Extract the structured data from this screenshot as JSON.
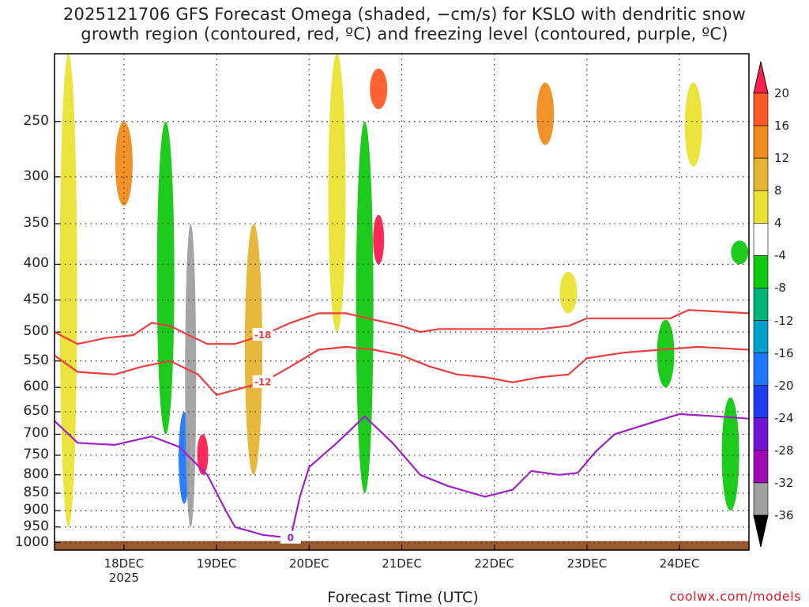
{
  "title": {
    "line1": "2025121706 GFS Forecast Omega (shaded, −cm/s) for KSLO with dendritic snow",
    "line2": "growth region (contoured, red, ºC) and freezing level (contoured, purple, ºC)"
  },
  "credit": "coolwx.com/models",
  "colors": {
    "dgz_contour": "#ee3d3d",
    "freezing_contour": "#a020c8",
    "terrain": "#9b5a2e",
    "grid": "#333333"
  },
  "chart_data": {
    "type": "heatmap",
    "xlabel": "Forecast Time (UTC)",
    "ylabel": "",
    "x_ticks": [
      {
        "label": "18DEC",
        "sub": "2025"
      },
      {
        "label": "19DEC",
        "sub": ""
      },
      {
        "label": "20DEC",
        "sub": ""
      },
      {
        "label": "21DEC",
        "sub": ""
      },
      {
        "label": "22DEC",
        "sub": ""
      },
      {
        "label": "23DEC",
        "sub": ""
      },
      {
        "label": "24DEC",
        "sub": ""
      }
    ],
    "x_range_days": [
      17.25,
      24.75
    ],
    "y_scale": "log-pressure",
    "y_ticks": [
      250,
      300,
      350,
      400,
      450,
      500,
      550,
      600,
      650,
      700,
      750,
      800,
      850,
      900,
      950,
      1000
    ],
    "y_range_hpa": [
      200,
      1025
    ],
    "colorbar": {
      "label_values": [
        20,
        16,
        12,
        8,
        4,
        -4,
        -8,
        -12,
        -16,
        -20,
        -24,
        -28,
        -32,
        -36
      ],
      "colors": [
        "#ff1e50",
        "#ff5a28",
        "#f08c1e",
        "#e6b432",
        "#ebe132",
        "#ffffff",
        "#10c810",
        "#00b478",
        "#00a0c8",
        "#1e78ff",
        "#1e3cf0",
        "#6e14d2",
        "#a00ab4",
        "#a0a0a0",
        "#000000"
      ],
      "labels": [
        "20",
        "16",
        "12",
        "8",
        "4",
        "-4",
        "-8",
        "-12",
        "-16",
        "-20",
        "-24",
        "-28",
        "-32",
        "-36"
      ]
    },
    "omega_features": [
      {
        "day": 17.4,
        "p_top": 200,
        "p_bot": 950,
        "value": 4
      },
      {
        "day": 18.0,
        "p_top": 250,
        "p_bot": 330,
        "value": 12
      },
      {
        "day": 18.45,
        "p_top": 250,
        "p_bot": 700,
        "value": -8
      },
      {
        "day": 18.65,
        "p_top": 650,
        "p_bot": 880,
        "value": -20
      },
      {
        "day": 18.72,
        "p_top": 350,
        "p_bot": 950,
        "value": -36
      },
      {
        "day": 18.85,
        "p_top": 700,
        "p_bot": 800,
        "value": 20
      },
      {
        "day": 19.4,
        "p_top": 350,
        "p_bot": 800,
        "value": 8
      },
      {
        "day": 20.3,
        "p_top": 200,
        "p_bot": 500,
        "value": 4
      },
      {
        "day": 20.6,
        "p_top": 250,
        "p_bot": 850,
        "value": -8
      },
      {
        "day": 20.75,
        "p_top": 340,
        "p_bot": 400,
        "value": 20
      },
      {
        "day": 20.75,
        "p_top": 210,
        "p_bot": 240,
        "value": 16
      },
      {
        "day": 22.55,
        "p_top": 220,
        "p_bot": 270,
        "value": 12
      },
      {
        "day": 22.8,
        "p_top": 410,
        "p_bot": 470,
        "value": 4
      },
      {
        "day": 23.85,
        "p_top": 480,
        "p_bot": 600,
        "value": -8
      },
      {
        "day": 24.15,
        "p_top": 220,
        "p_bot": 290,
        "value": 4
      },
      {
        "day": 24.55,
        "p_top": 620,
        "p_bot": 900,
        "value": -8
      },
      {
        "day": 24.65,
        "p_top": 370,
        "p_bot": 400,
        "value": -8
      }
    ],
    "contours": [
      {
        "name": "-18",
        "label": "-18",
        "color": "#ee3d3d",
        "points": [
          [
            17.25,
            500
          ],
          [
            17.5,
            520
          ],
          [
            17.8,
            510
          ],
          [
            18.1,
            505
          ],
          [
            18.3,
            485
          ],
          [
            18.5,
            490
          ],
          [
            18.7,
            505
          ],
          [
            18.9,
            520
          ],
          [
            19.2,
            520
          ],
          [
            19.5,
            505
          ],
          [
            19.8,
            485
          ],
          [
            20.1,
            470
          ],
          [
            20.4,
            470
          ],
          [
            20.7,
            480
          ],
          [
            21.0,
            490
          ],
          [
            21.2,
            500
          ],
          [
            21.4,
            495
          ],
          [
            21.7,
            495
          ],
          [
            22.1,
            495
          ],
          [
            22.5,
            495
          ],
          [
            22.8,
            490
          ],
          [
            23.0,
            478
          ],
          [
            23.5,
            478
          ],
          [
            23.9,
            478
          ],
          [
            24.1,
            465
          ],
          [
            24.75,
            470
          ]
        ]
      },
      {
        "name": "-12",
        "label": "-12",
        "color": "#ee3d3d",
        "points": [
          [
            17.25,
            540
          ],
          [
            17.5,
            570
          ],
          [
            17.9,
            575
          ],
          [
            18.2,
            560
          ],
          [
            18.5,
            550
          ],
          [
            18.8,
            575
          ],
          [
            19.0,
            615
          ],
          [
            19.2,
            605
          ],
          [
            19.5,
            590
          ],
          [
            19.8,
            560
          ],
          [
            20.1,
            530
          ],
          [
            20.4,
            525
          ],
          [
            20.7,
            530
          ],
          [
            21.0,
            540
          ],
          [
            21.3,
            560
          ],
          [
            21.6,
            575
          ],
          [
            21.9,
            580
          ],
          [
            22.2,
            590
          ],
          [
            22.5,
            580
          ],
          [
            22.8,
            575
          ],
          [
            23.0,
            545
          ],
          [
            23.4,
            535
          ],
          [
            23.8,
            530
          ],
          [
            24.2,
            525
          ],
          [
            24.75,
            530
          ]
        ]
      },
      {
        "name": "0",
        "label": "0",
        "color": "#a020c8",
        "points": [
          [
            17.25,
            670
          ],
          [
            17.5,
            720
          ],
          [
            17.9,
            725
          ],
          [
            18.3,
            705
          ],
          [
            18.6,
            730
          ],
          [
            18.9,
            800
          ],
          [
            19.1,
            900
          ],
          [
            19.2,
            950
          ],
          [
            19.5,
            975
          ],
          [
            19.8,
            985
          ],
          [
            19.9,
            860
          ],
          [
            20.0,
            780
          ],
          [
            20.3,
            720
          ],
          [
            20.6,
            660
          ],
          [
            20.9,
            720
          ],
          [
            21.2,
            800
          ],
          [
            21.5,
            830
          ],
          [
            21.9,
            860
          ],
          [
            22.2,
            840
          ],
          [
            22.4,
            790
          ],
          [
            22.7,
            800
          ],
          [
            22.9,
            795
          ],
          [
            23.1,
            740
          ],
          [
            23.3,
            700
          ],
          [
            23.6,
            680
          ],
          [
            24.0,
            655
          ],
          [
            24.4,
            660
          ],
          [
            24.75,
            665
          ]
        ]
      }
    ]
  }
}
